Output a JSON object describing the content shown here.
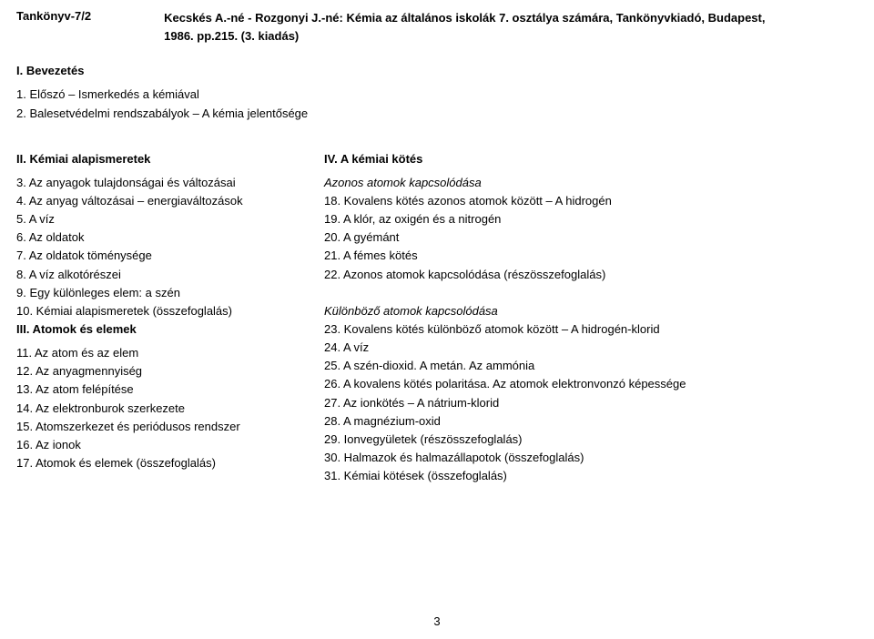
{
  "header": {
    "label": "Tankönyv-7/2",
    "citation_line1": "Kecskés A.-né - Rozgonyi J.-né: Kémia az általános iskolák 7. osztálya számára, Tankönyvkiadó, Budapest,",
    "citation_line2": "1986. pp.215. (3. kiadás)"
  },
  "intro": {
    "head": "I. Bevezetés",
    "items": [
      "1. Előszó – Ismerkedés a kémiával",
      "2. Balesetvédelmi rendszabályok – A kémia jelentősége"
    ]
  },
  "left": {
    "head1": "II. Kémiai alapismeretek",
    "block1": [
      "3. Az anyagok tulajdonságai és változásai",
      "4. Az anyag változásai – energiaváltozások",
      "5. A víz",
      "6. Az oldatok",
      "7. Az oldatok töménysége",
      "8. A víz alkotórészei",
      "9. Egy különleges elem: a szén",
      "10. Kémiai alapismeretek (összefoglalás)"
    ],
    "head2": "III. Atomok és elemek",
    "block2": [
      "11. Az atom és az elem",
      "12. Az anyagmennyiség",
      "13. Az atom felépítése",
      "14. Az elektronburok szerkezete",
      "15. Atomszerkezet és periódusos rendszer",
      "16. Az ionok",
      "17. Atomok és elemek (összefoglalás)"
    ]
  },
  "right": {
    "head": "IV. A kémiai kötés",
    "sub1": "Azonos atomok kapcsolódása",
    "block1": [
      "18. Kovalens kötés azonos atomok között – A hidrogén",
      "19. A klór, az oxigén és a nitrogén",
      "20. A gyémánt",
      "21. A fémes kötés",
      "22. Azonos atomok kapcsolódása (részösszefoglalás)"
    ],
    "sub2": "Különböző atomok kapcsolódása",
    "block2": [
      "23. Kovalens kötés különböző atomok között – A hidrogén-klorid",
      "24. A víz",
      "25. A szén-dioxid. A metán. Az ammónia",
      "26. A kovalens kötés polaritása. Az atomok elektronvonzó képessége",
      "27. Az ionkötés – A nátrium-klorid",
      "28. A magnézium-oxid",
      "29. Ionvegyületek (részösszefoglalás)",
      "30. Halmazok és halmazállapotok (összefoglalás)",
      "31. Kémiai kötések (összefoglalás)"
    ]
  },
  "page_number": "3"
}
